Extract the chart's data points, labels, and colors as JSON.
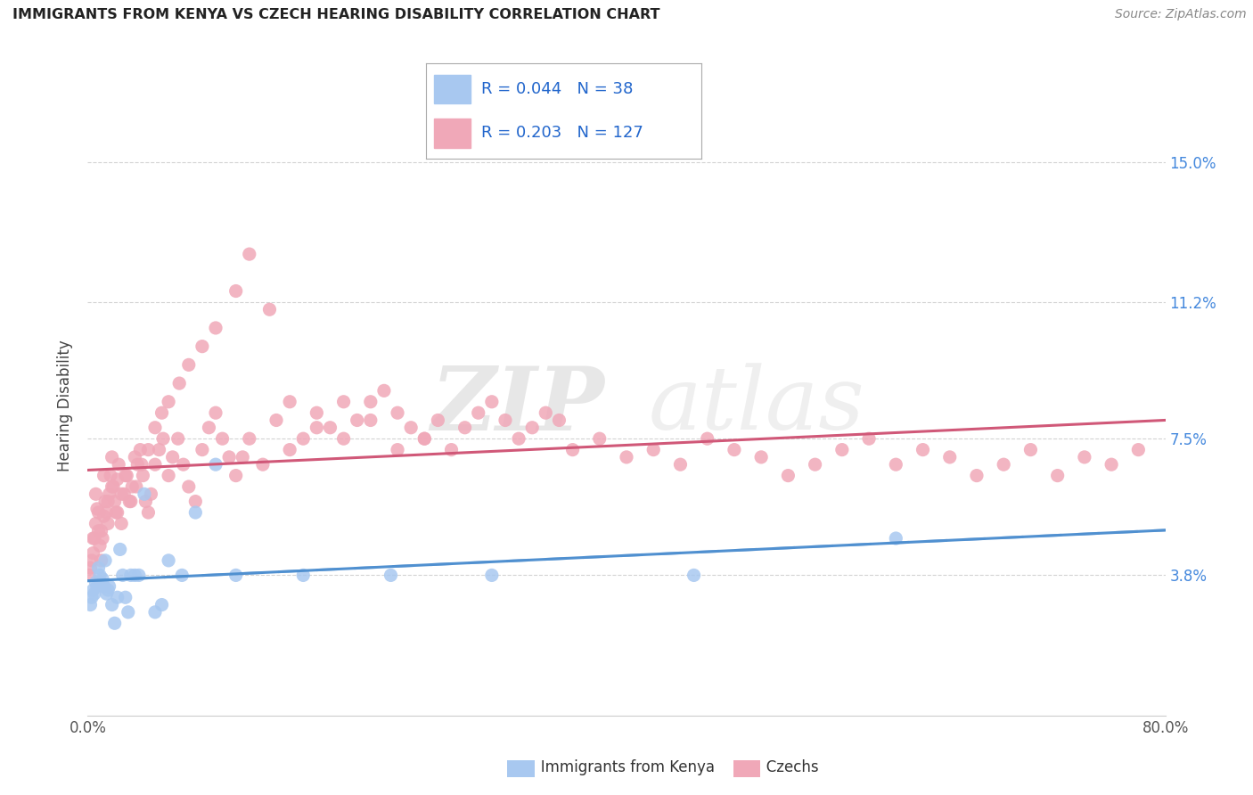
{
  "title": "IMMIGRANTS FROM KENYA VS CZECH HEARING DISABILITY CORRELATION CHART",
  "source": "Source: ZipAtlas.com",
  "ylabel": "Hearing Disability",
  "xlim": [
    0.0,
    0.8
  ],
  "ylim": [
    0.0,
    0.168
  ],
  "ytick_positions": [
    0.038,
    0.075,
    0.112,
    0.15
  ],
  "ytick_labels": [
    "3.8%",
    "7.5%",
    "11.2%",
    "15.0%"
  ],
  "grid_color": "#c8c8c8",
  "background_color": "#ffffff",
  "watermark_zip": "ZIP",
  "watermark_atlas": "atlas",
  "series": [
    {
      "name": "Immigrants from Kenya",
      "R": 0.044,
      "N": 38,
      "color_scatter": "#a8c8f0",
      "color_line": "#5090d0",
      "line_style": "--",
      "alpha": 0.85
    },
    {
      "name": "Czechs",
      "R": 0.203,
      "N": 127,
      "color_scatter": "#f0a8b8",
      "color_line": "#d05878",
      "line_style": "-",
      "alpha": 0.85
    }
  ],
  "legend_R_color": "#0050b0",
  "legend_N_color": "#e05060",
  "kenya_x": [
    0.002,
    0.003,
    0.004,
    0.005,
    0.006,
    0.007,
    0.008,
    0.009,
    0.01,
    0.011,
    0.012,
    0.013,
    0.014,
    0.015,
    0.016,
    0.018,
    0.02,
    0.022,
    0.024,
    0.026,
    0.028,
    0.03,
    0.032,
    0.035,
    0.038,
    0.042,
    0.05,
    0.055,
    0.06,
    0.07,
    0.08,
    0.095,
    0.11,
    0.16,
    0.225,
    0.3,
    0.45,
    0.6
  ],
  "kenya_y": [
    0.03,
    0.032,
    0.034,
    0.033,
    0.036,
    0.035,
    0.04,
    0.038,
    0.036,
    0.037,
    0.035,
    0.042,
    0.033,
    0.034,
    0.035,
    0.03,
    0.025,
    0.032,
    0.045,
    0.038,
    0.032,
    0.028,
    0.038,
    0.038,
    0.038,
    0.06,
    0.028,
    0.03,
    0.042,
    0.038,
    0.055,
    0.068,
    0.038,
    0.038,
    0.038,
    0.038,
    0.038,
    0.048
  ],
  "czech_x": [
    0.001,
    0.002,
    0.003,
    0.004,
    0.005,
    0.006,
    0.007,
    0.008,
    0.009,
    0.01,
    0.011,
    0.012,
    0.013,
    0.014,
    0.015,
    0.016,
    0.017,
    0.018,
    0.019,
    0.02,
    0.021,
    0.022,
    0.023,
    0.025,
    0.027,
    0.029,
    0.031,
    0.033,
    0.035,
    0.037,
    0.039,
    0.041,
    0.043,
    0.045,
    0.047,
    0.05,
    0.053,
    0.056,
    0.06,
    0.063,
    0.067,
    0.071,
    0.075,
    0.08,
    0.085,
    0.09,
    0.095,
    0.1,
    0.105,
    0.11,
    0.115,
    0.12,
    0.13,
    0.14,
    0.15,
    0.16,
    0.17,
    0.18,
    0.19,
    0.2,
    0.21,
    0.22,
    0.23,
    0.24,
    0.25,
    0.26,
    0.27,
    0.28,
    0.29,
    0.3,
    0.31,
    0.32,
    0.33,
    0.34,
    0.35,
    0.36,
    0.38,
    0.4,
    0.42,
    0.44,
    0.46,
    0.48,
    0.5,
    0.52,
    0.54,
    0.56,
    0.58,
    0.6,
    0.62,
    0.64,
    0.66,
    0.68,
    0.7,
    0.72,
    0.74,
    0.76,
    0.78,
    0.004,
    0.006,
    0.008,
    0.01,
    0.012,
    0.015,
    0.018,
    0.022,
    0.025,
    0.028,
    0.032,
    0.036,
    0.04,
    0.045,
    0.05,
    0.055,
    0.06,
    0.068,
    0.075,
    0.085,
    0.095,
    0.11,
    0.12,
    0.135,
    0.15,
    0.17,
    0.19,
    0.21,
    0.23,
    0.25
  ],
  "czech_y": [
    0.038,
    0.04,
    0.042,
    0.044,
    0.048,
    0.052,
    0.056,
    0.05,
    0.046,
    0.042,
    0.048,
    0.054,
    0.058,
    0.055,
    0.052,
    0.06,
    0.065,
    0.07,
    0.062,
    0.058,
    0.055,
    0.064,
    0.068,
    0.052,
    0.06,
    0.065,
    0.058,
    0.062,
    0.07,
    0.068,
    0.072,
    0.065,
    0.058,
    0.055,
    0.06,
    0.068,
    0.072,
    0.075,
    0.065,
    0.07,
    0.075,
    0.068,
    0.062,
    0.058,
    0.072,
    0.078,
    0.082,
    0.075,
    0.07,
    0.065,
    0.07,
    0.075,
    0.068,
    0.08,
    0.072,
    0.075,
    0.082,
    0.078,
    0.085,
    0.08,
    0.085,
    0.088,
    0.082,
    0.078,
    0.075,
    0.08,
    0.072,
    0.078,
    0.082,
    0.085,
    0.08,
    0.075,
    0.078,
    0.082,
    0.08,
    0.072,
    0.075,
    0.07,
    0.072,
    0.068,
    0.075,
    0.072,
    0.07,
    0.065,
    0.068,
    0.072,
    0.075,
    0.068,
    0.072,
    0.07,
    0.065,
    0.068,
    0.072,
    0.065,
    0.07,
    0.068,
    0.072,
    0.048,
    0.06,
    0.055,
    0.05,
    0.065,
    0.058,
    0.062,
    0.055,
    0.06,
    0.065,
    0.058,
    0.062,
    0.068,
    0.072,
    0.078,
    0.082,
    0.085,
    0.09,
    0.095,
    0.1,
    0.105,
    0.115,
    0.125,
    0.11,
    0.085,
    0.078,
    0.075,
    0.08,
    0.072,
    0.075
  ]
}
